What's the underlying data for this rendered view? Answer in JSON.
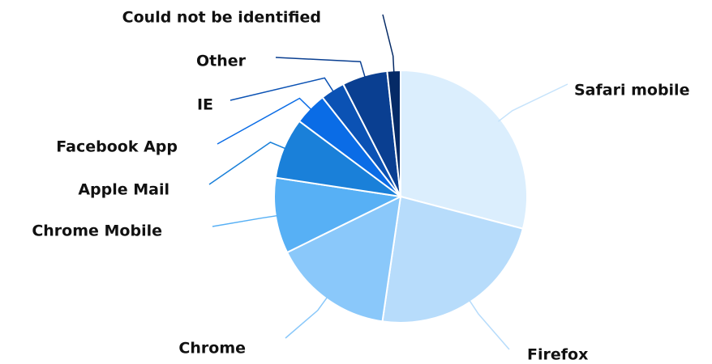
{
  "chart_data": {
    "type": "pie",
    "categories": [
      "Safari mobile",
      "Firefox",
      "Chrome",
      "Chrome Mobile",
      "Apple Mail",
      "Facebook App",
      "IE",
      "Other",
      "Could not be identified"
    ],
    "values": [
      29.1,
      23.2,
      15.4,
      9.7,
      7.8,
      4.2,
      3.1,
      5.8,
      1.7
    ],
    "colors": [
      "#dbeefd",
      "#b7dcfb",
      "#8ac8fa",
      "#57b0f5",
      "#1a80d9",
      "#0a6ce6",
      "#0b52b4",
      "#0a3f91",
      "#052a66"
    ]
  }
}
